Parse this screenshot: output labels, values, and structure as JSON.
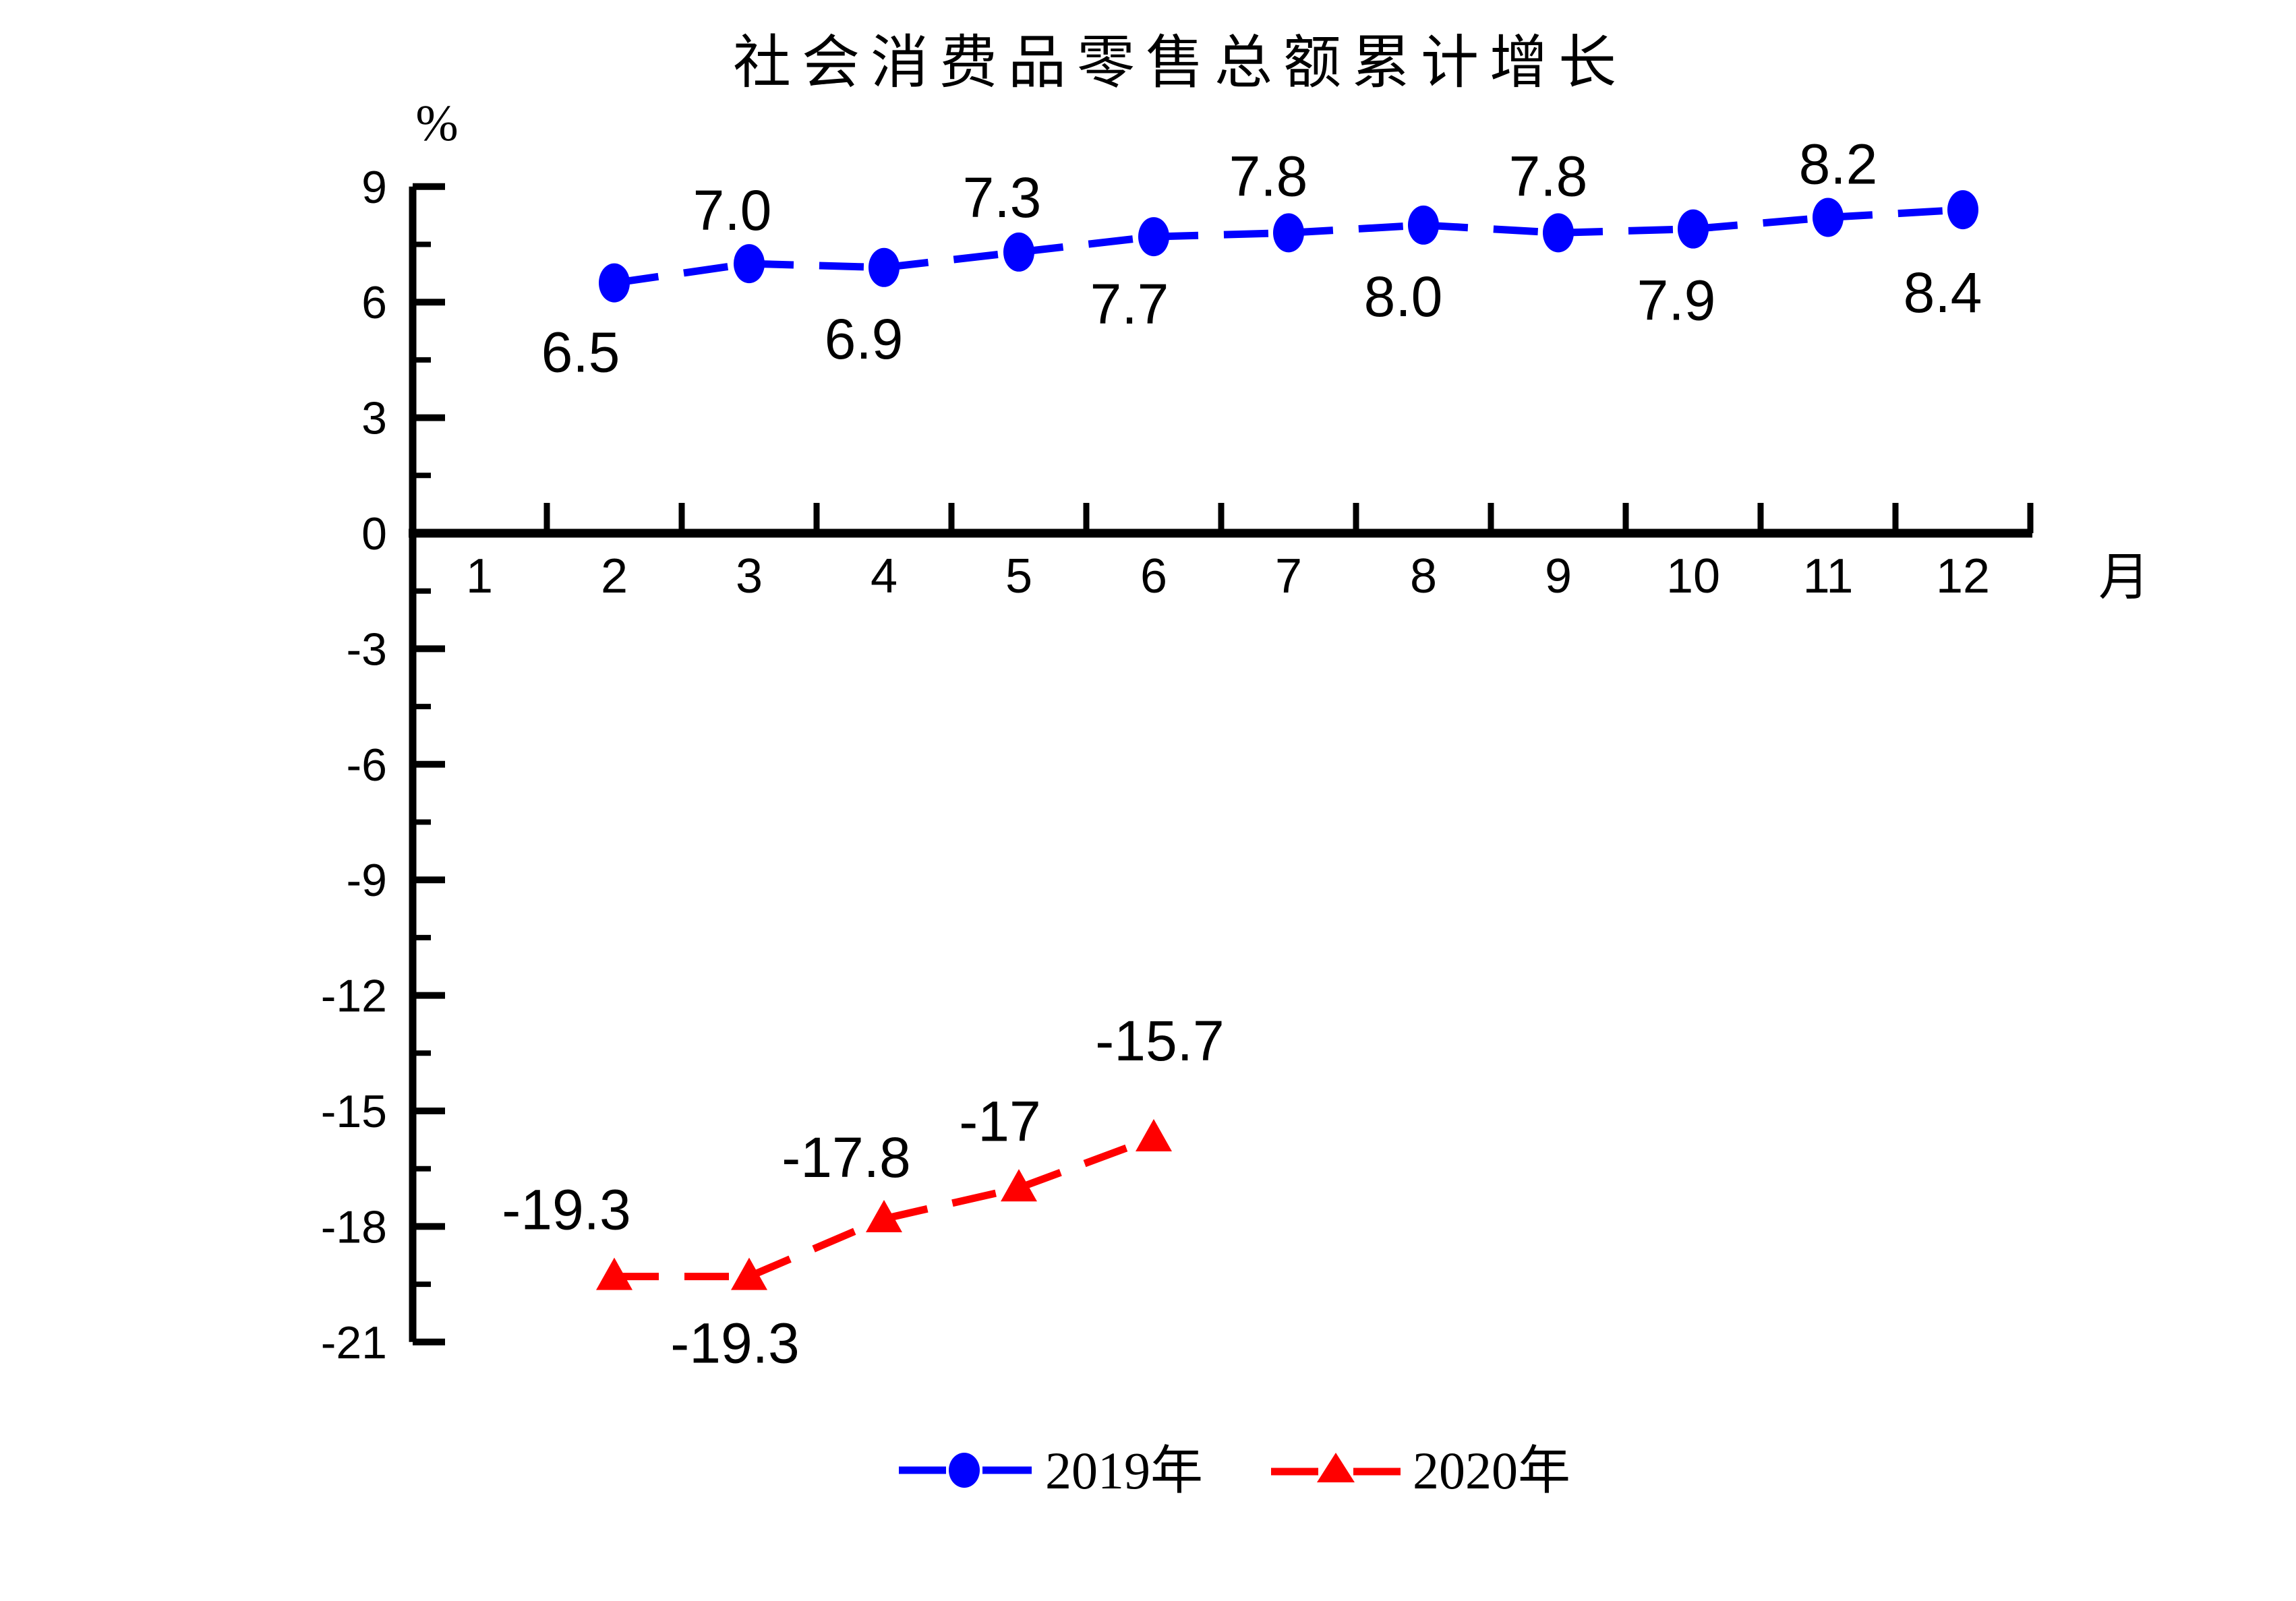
{
  "page": {
    "background": "#ffffff",
    "text_color": "#000000"
  },
  "chart_data": {
    "type": "line",
    "title": "社会消费品零售总额累计增长",
    "ylabel": "%",
    "xlabel": "月",
    "xlim": [
      0.5,
      12.5
    ],
    "ylim": [
      -21,
      9
    ],
    "grid": false,
    "legend_position": "bottom-center",
    "x_ticks": [
      1,
      2,
      3,
      4,
      5,
      6,
      7,
      8,
      9,
      10,
      11,
      12
    ],
    "y_ticks": [
      9,
      6,
      3,
      0,
      -3,
      -6,
      -9,
      -12,
      -15,
      -18,
      -21
    ],
    "y_minor_ticks": [
      7.5,
      4.5,
      1.5,
      -1.5,
      -4.5,
      -7.5,
      -10.5,
      -13.5,
      -16.5,
      -19.5
    ],
    "series": [
      {
        "name": "2019年",
        "color": "#0000ff",
        "marker": "circle",
        "line_style": "dashed",
        "x": [
          2,
          3,
          4,
          5,
          6,
          7,
          8,
          9,
          10,
          11,
          12
        ],
        "values": [
          6.5,
          7.0,
          6.9,
          7.3,
          7.7,
          7.8,
          8.0,
          7.8,
          7.9,
          8.2,
          8.4
        ],
        "labels": [
          "6.5",
          "7.0",
          "6.9",
          "7.3",
          "7.7",
          "7.8",
          "8.0",
          "7.8",
          "7.9",
          "8.2",
          "8.4"
        ],
        "label_side": [
          "below",
          "above",
          "below",
          "above",
          "below",
          "above",
          "below",
          "above",
          "below",
          "above",
          "below"
        ],
        "label_offsets": [
          [
            -50,
            102
          ],
          [
            -25,
            -80
          ],
          [
            -30,
            105
          ],
          [
            -25,
            -82
          ],
          [
            -36,
            99
          ],
          [
            -30,
            -85
          ],
          [
            -30,
            105
          ],
          [
            -15,
            -85
          ],
          [
            -25,
            105
          ],
          [
            15,
            -80
          ],
          [
            -30,
            122
          ]
        ]
      },
      {
        "name": "2020年",
        "color": "#ff0000",
        "marker": "triangle",
        "line_style": "dashed",
        "x": [
          2,
          3,
          4,
          5,
          6
        ],
        "values": [
          -19.3,
          -19.3,
          -17.8,
          -17,
          -15.7
        ],
        "labels": [
          "-19.3",
          "-19.3",
          "-17.8",
          "-17",
          "-15.7"
        ],
        "label_side": [
          "above",
          "below",
          "above",
          "above",
          "above"
        ],
        "label_offsets": [
          [
            -71,
            -100
          ],
          [
            -21,
            98
          ],
          [
            -56,
            -92
          ],
          [
            -28,
            -100
          ],
          [
            9,
            -145
          ]
        ]
      }
    ],
    "legend": {
      "items": [
        {
          "label": "2019年",
          "color": "#0000ff",
          "marker": "circle"
        },
        {
          "label": "2020年",
          "color": "#ff0000",
          "marker": "triangle"
        }
      ]
    }
  }
}
